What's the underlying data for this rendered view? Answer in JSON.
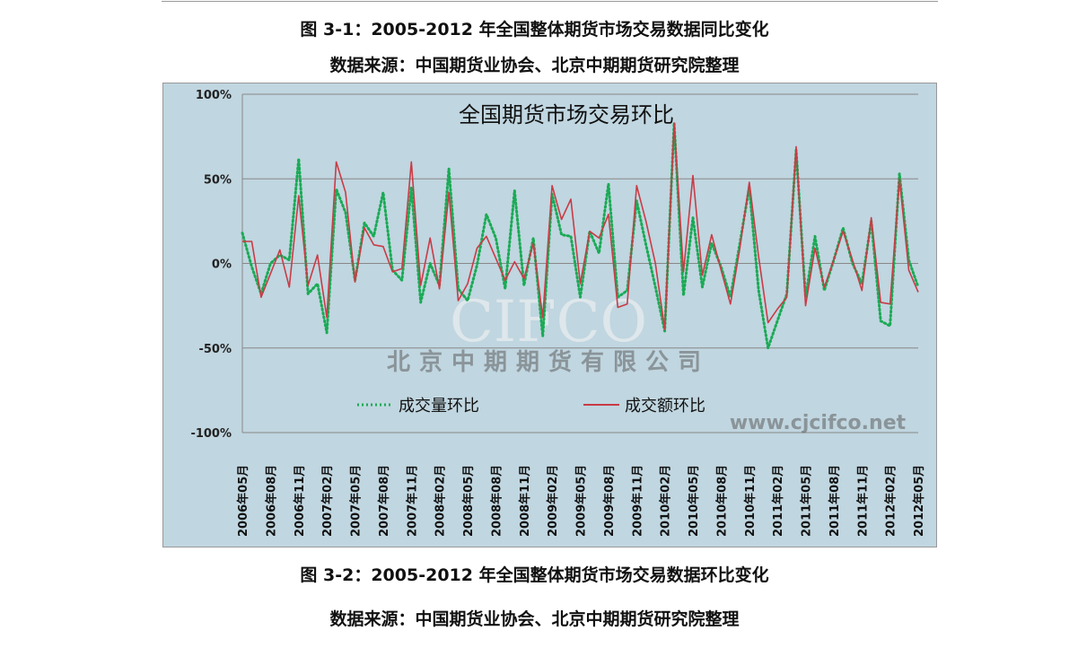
{
  "captions": {
    "fig1_title": "图 3-1：2005-2012 年全国整体期货市场交易数据同比变化",
    "fig1_source": "数据来源：中国期货业协会、北京中期期货研究院整理",
    "fig2_title": "图 3-2：2005-2012 年全国整体期货市场交易数据环比变化",
    "fig2_source": "数据来源：中国期货业协会、北京中期期货研究院整理"
  },
  "watermark": {
    "logo": "CIFCO",
    "company": "北京中期期货有限公司",
    "url": "www.cjcifco.net"
  },
  "chart_data": {
    "type": "line",
    "title": "全国期货市场交易环比",
    "xlabel": "",
    "ylabel": "",
    "ylim": [
      -100,
      100
    ],
    "yticks": [
      "100%",
      "50%",
      "0%",
      "-50%",
      "-100%"
    ],
    "ytick_values": [
      100,
      50,
      0,
      -50,
      -100
    ],
    "grid": true,
    "legend_placement": "bottom-inside",
    "x_start": "2006-05",
    "x_end": "2012-05",
    "xtick_labels": [
      "2006年05月",
      "2006年08月",
      "2006年11月",
      "2007年02月",
      "2007年05月",
      "2007年08月",
      "2007年11月",
      "2008年02月",
      "2008年05月",
      "2008年08月",
      "2008年11月",
      "2009年02月",
      "2009年05月",
      "2009年08月",
      "2009年11月",
      "2010年02月",
      "2010年05月",
      "2010年08月",
      "2010年11月",
      "2011年02月",
      "2011年05月",
      "2011年08月",
      "2011年11月",
      "2012年02月",
      "2012年05月"
    ],
    "series": [
      {
        "name": "成交量环比",
        "color": "#1aaa55",
        "style": "dotted",
        "values": [
          18,
          -2,
          -18,
          0,
          5,
          2,
          62,
          -18,
          -12,
          -41,
          44,
          30,
          -10,
          24,
          16,
          42,
          -4,
          -10,
          45,
          -23,
          0,
          -13,
          56,
          -15,
          -22,
          -1,
          29,
          15,
          -15,
          43,
          -13,
          15,
          -43,
          41,
          17,
          16,
          -20,
          19,
          6,
          47,
          -20,
          -16,
          37,
          11,
          -14,
          -40,
          83,
          -19,
          27,
          -14,
          12,
          -2,
          -20,
          12,
          45,
          -16,
          -50,
          -34,
          -18,
          67,
          -20,
          16,
          -16,
          2,
          21,
          0,
          -12,
          25,
          -34,
          -37,
          53,
          2,
          -14
        ]
      },
      {
        "name": "成交额环比",
        "color": "#c83c46",
        "style": "solid",
        "values": [
          13,
          13,
          -20,
          -6,
          8,
          -14,
          40,
          -13,
          5,
          -32,
          60,
          42,
          -11,
          21,
          11,
          10,
          -5,
          -3,
          60,
          -13,
          15,
          -15,
          42,
          -22,
          -12,
          9,
          16,
          3,
          -10,
          1,
          -9,
          12,
          -32,
          46,
          26,
          38,
          -12,
          19,
          15,
          29,
          -26,
          -24,
          46,
          25,
          0,
          -39,
          83,
          -5,
          52,
          -7,
          17,
          -4,
          -24,
          9,
          48,
          4,
          -35,
          -27,
          -20,
          69,
          -25,
          9,
          -14,
          2,
          19,
          2,
          -16,
          27,
          -23,
          -24,
          50,
          -4,
          -17
        ]
      }
    ]
  }
}
